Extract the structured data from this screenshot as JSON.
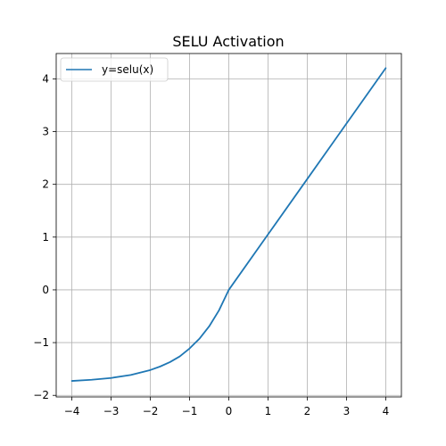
{
  "chart_data": {
    "type": "line",
    "title": "SELU Activation",
    "xlabel": "",
    "ylabel": "",
    "xlim": [
      -4.4,
      4.4
    ],
    "ylim": [
      -2.03,
      4.48
    ],
    "grid": true,
    "legend_position": "top-left",
    "x_ticks": [
      -4,
      -3,
      -2,
      -1,
      0,
      1,
      2,
      3,
      4
    ],
    "x_tick_labels": [
      "−4",
      "−3",
      "−2",
      "−1",
      "0",
      "1",
      "2",
      "3",
      "4"
    ],
    "y_ticks": [
      -2,
      -1,
      0,
      1,
      2,
      3,
      4
    ],
    "y_tick_labels": [
      "−2",
      "−1",
      "0",
      "1",
      "2",
      "3",
      "4"
    ],
    "series": [
      {
        "name": "y=selu(x)",
        "color": "#1f77b4",
        "x": [
          -4.0,
          -3.5,
          -3.0,
          -2.5,
          -2.0,
          -1.75,
          -1.5,
          -1.25,
          -1.0,
          -0.75,
          -0.5,
          -0.25,
          0.0,
          1.0,
          2.0,
          3.0,
          4.0
        ],
        "y": [
          -1.727,
          -1.705,
          -1.67,
          -1.614,
          -1.52,
          -1.453,
          -1.369,
          -1.262,
          -1.111,
          -0.927,
          -0.692,
          -0.389,
          0.0,
          1.051,
          2.101,
          3.152,
          4.203
        ]
      }
    ]
  }
}
